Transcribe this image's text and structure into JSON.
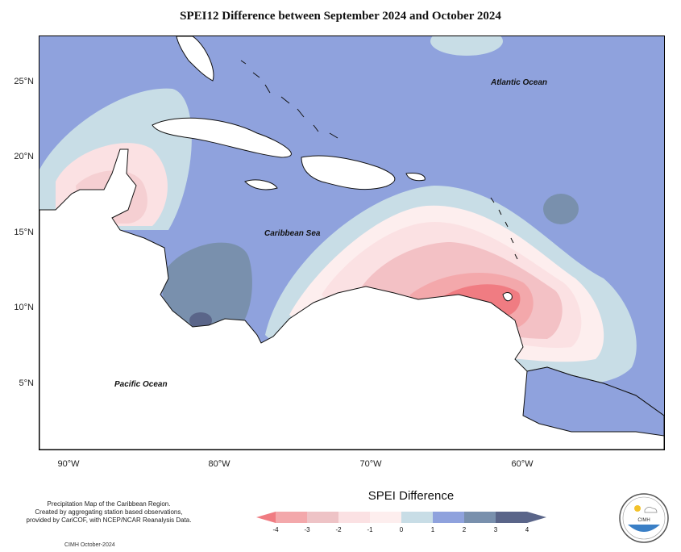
{
  "title": "SPEI12 Difference between September 2024 and October 2024",
  "axes": {
    "y_ticks": [
      "25°N",
      "20°N",
      "15°N",
      "10°N",
      "5°N"
    ],
    "x_ticks": [
      "90°W",
      "80°W",
      "70°W",
      "60°W"
    ]
  },
  "labels": {
    "atlantic": "Atlantic Ocean",
    "caribbean": "Caribbean Sea",
    "pacific": "Pacific Ocean"
  },
  "legend": {
    "title": "SPEI Difference",
    "ticks": [
      "-4",
      "-3",
      "-2",
      "-1",
      "0",
      "1",
      "2",
      "3",
      "4"
    ],
    "colors": [
      "#f07c82",
      "#f3a8ab",
      "#eec3c6",
      "#fbe1e3",
      "#fdeeee",
      "#c8dde6",
      "#8fa2dd",
      "#7990ad",
      "#5a6589"
    ]
  },
  "credits": {
    "line1": "Precipitation Map of the Caribbean Region.",
    "line2": "Created by aggregating station based observations,",
    "line3": "provided by CariCOF, with NCEP/NCAR Reanalysis Data.",
    "footer": "CIMH October-2024"
  },
  "logo": {
    "text": "CIMH"
  }
}
